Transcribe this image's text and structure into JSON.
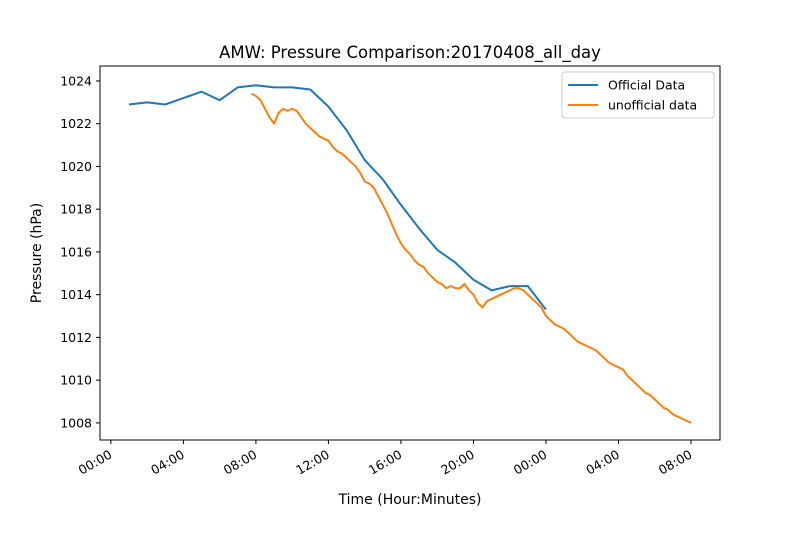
{
  "chart_data": {
    "type": "line",
    "title": "AMW: Pressure Comparison:20170408_all_day",
    "xlabel": "Time (Hour:Minutes)",
    "ylabel": "Pressure (hPa)",
    "x_units": "hours since 00:00 on the first day",
    "xlim": [
      -0.6,
      33.6
    ],
    "ylim": [
      1007.2,
      1024.7
    ],
    "xticks": [
      0,
      4,
      8,
      12,
      16,
      20,
      24,
      28,
      32
    ],
    "xtick_labels": [
      "00:00",
      "04:00",
      "08:00",
      "12:00",
      "16:00",
      "20:00",
      "00:00",
      "04:00",
      "08:00"
    ],
    "yticks": [
      1008,
      1010,
      1012,
      1014,
      1016,
      1018,
      1020,
      1022,
      1024
    ],
    "ytick_labels": [
      "1008",
      "1010",
      "1012",
      "1014",
      "1016",
      "1018",
      "1020",
      "1022",
      "1024"
    ],
    "grid": false,
    "legend_position": "top-right",
    "series": [
      {
        "name": "Official Data",
        "color": "#1f77b4",
        "x": [
          1.0,
          2.0,
          3.0,
          4.0,
          5.0,
          6.0,
          7.0,
          8.0,
          9.0,
          10.0,
          11.0,
          12.0,
          13.0,
          14.0,
          15.0,
          16.0,
          17.0,
          18.0,
          19.0,
          20.0,
          21.0,
          22.0,
          23.0,
          24.0
        ],
        "y": [
          1022.9,
          1023.0,
          1022.9,
          1023.2,
          1023.5,
          1023.1,
          1023.7,
          1023.8,
          1023.7,
          1023.7,
          1023.6,
          1022.8,
          1021.7,
          1020.3,
          1019.4,
          1018.2,
          1017.1,
          1016.1,
          1015.5,
          1014.7,
          1014.2,
          1014.4,
          1014.4,
          1013.3
        ]
      },
      {
        "name": "unofficial data",
        "color": "#ff7f0e",
        "x": [
          7.75,
          8.0,
          8.25,
          8.5,
          8.75,
          9.0,
          9.25,
          9.5,
          9.75,
          10.0,
          10.25,
          10.5,
          10.75,
          11.0,
          11.25,
          11.5,
          11.75,
          12.0,
          12.25,
          12.5,
          12.75,
          13.0,
          13.25,
          13.5,
          13.75,
          14.0,
          14.25,
          14.5,
          14.75,
          15.0,
          15.25,
          15.5,
          15.75,
          16.0,
          16.25,
          16.5,
          16.75,
          17.0,
          17.25,
          17.5,
          17.75,
          18.0,
          18.25,
          18.5,
          18.75,
          19.0,
          19.25,
          19.5,
          19.75,
          20.0,
          20.25,
          20.5,
          20.75,
          21.0,
          21.25,
          21.5,
          21.75,
          22.0,
          22.25,
          22.5,
          22.75,
          23.0,
          23.25,
          23.5,
          23.75,
          24.0,
          24.25,
          24.5,
          24.75,
          25.0,
          25.25,
          25.5,
          25.75,
          26.0,
          26.25,
          26.5,
          26.75,
          27.0,
          27.25,
          27.5,
          27.75,
          28.0,
          28.25,
          28.5,
          28.75,
          29.0,
          29.25,
          29.5,
          29.75,
          30.0,
          30.25,
          30.5,
          30.75,
          31.0,
          31.25,
          31.5,
          31.75,
          32.0
        ],
        "y": [
          1023.4,
          1023.3,
          1023.1,
          1022.7,
          1022.3,
          1022.0,
          1022.5,
          1022.7,
          1022.6,
          1022.7,
          1022.6,
          1022.3,
          1022.0,
          1021.8,
          1021.6,
          1021.4,
          1021.3,
          1021.2,
          1020.9,
          1020.7,
          1020.6,
          1020.4,
          1020.2,
          1020.0,
          1019.7,
          1019.3,
          1019.2,
          1019.0,
          1018.6,
          1018.2,
          1017.8,
          1017.3,
          1016.8,
          1016.4,
          1016.1,
          1015.9,
          1015.6,
          1015.4,
          1015.3,
          1015.0,
          1014.8,
          1014.6,
          1014.5,
          1014.3,
          1014.4,
          1014.3,
          1014.3,
          1014.5,
          1014.2,
          1014.0,
          1013.6,
          1013.4,
          1013.7,
          1013.8,
          1013.9,
          1014.0,
          1014.1,
          1014.2,
          1014.3,
          1014.3,
          1014.2,
          1014.0,
          1013.8,
          1013.6,
          1013.4,
          1013.0,
          1012.8,
          1012.6,
          1012.5,
          1012.4,
          1012.2,
          1012.0,
          1011.8,
          1011.7,
          1011.6,
          1011.5,
          1011.4,
          1011.2,
          1011.0,
          1010.8,
          1010.7,
          1010.6,
          1010.5,
          1010.2,
          1010.0,
          1009.8,
          1009.6,
          1009.4,
          1009.3,
          1009.1,
          1008.9,
          1008.7,
          1008.6,
          1008.4,
          1008.3,
          1008.2,
          1008.1,
          1008.0
        ]
      }
    ]
  }
}
